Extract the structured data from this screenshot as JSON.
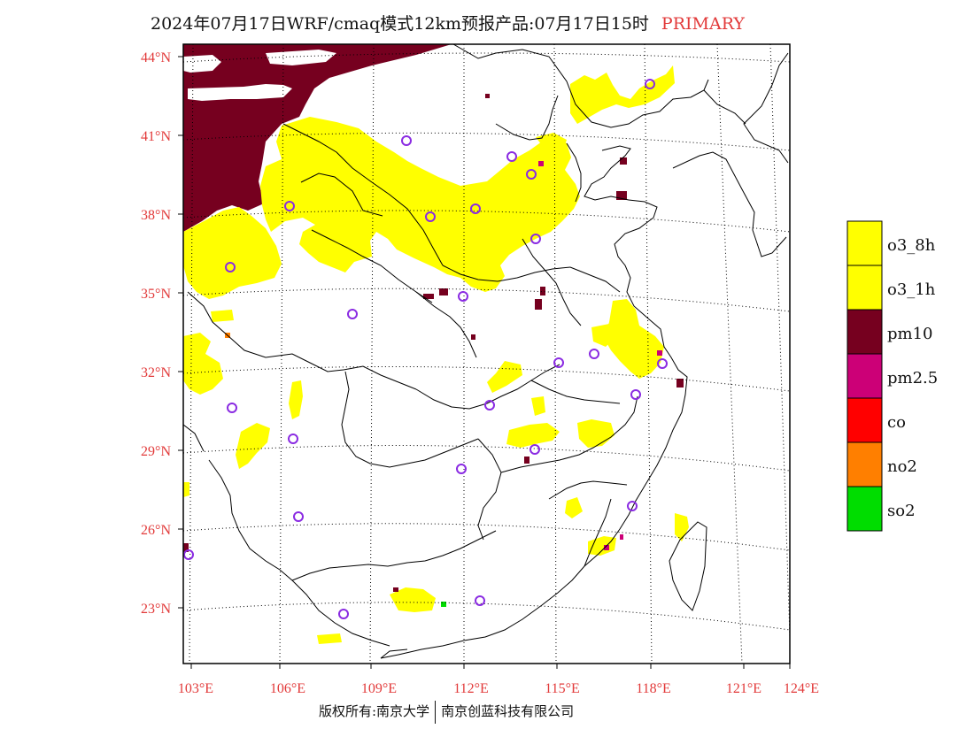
{
  "title": {
    "main": "2024年07月17日WRF/cmaq模式12km预报产品:07月17日15时",
    "tag": "PRIMARY",
    "tag_color": "#e23a3a"
  },
  "axes": {
    "lat_labels": [
      "44°N",
      "41°N",
      "38°N",
      "35°N",
      "32°N",
      "29°N",
      "26°N",
      "23°N"
    ],
    "lon_labels": [
      "103°E",
      "106°E",
      "109°E",
      "112°E",
      "115°E",
      "118°E",
      "121°E",
      "124°E"
    ],
    "label_color": "#e23a3a"
  },
  "legend": [
    {
      "label": "o3_8h",
      "color": "#ffff00"
    },
    {
      "label": "o3_1h",
      "color": "#ffff00"
    },
    {
      "label": "pm10",
      "color": "#76001f"
    },
    {
      "label": "pm2.5",
      "color": "#cc0077"
    },
    {
      "label": "co",
      "color": "#ff0000"
    },
    {
      "label": "no2",
      "color": "#ff7f00"
    },
    {
      "label": "so2",
      "color": "#00dd00"
    }
  ],
  "footer": {
    "left": "版权所有:南京大学",
    "right": "南京创蓝科技有限公司"
  },
  "colors": {
    "o3": "#ffff00",
    "pm10": "#76001f",
    "pm25": "#cc0077",
    "no2": "#ff7f00",
    "so2": "#00dd00",
    "station": "#8a2be2"
  }
}
